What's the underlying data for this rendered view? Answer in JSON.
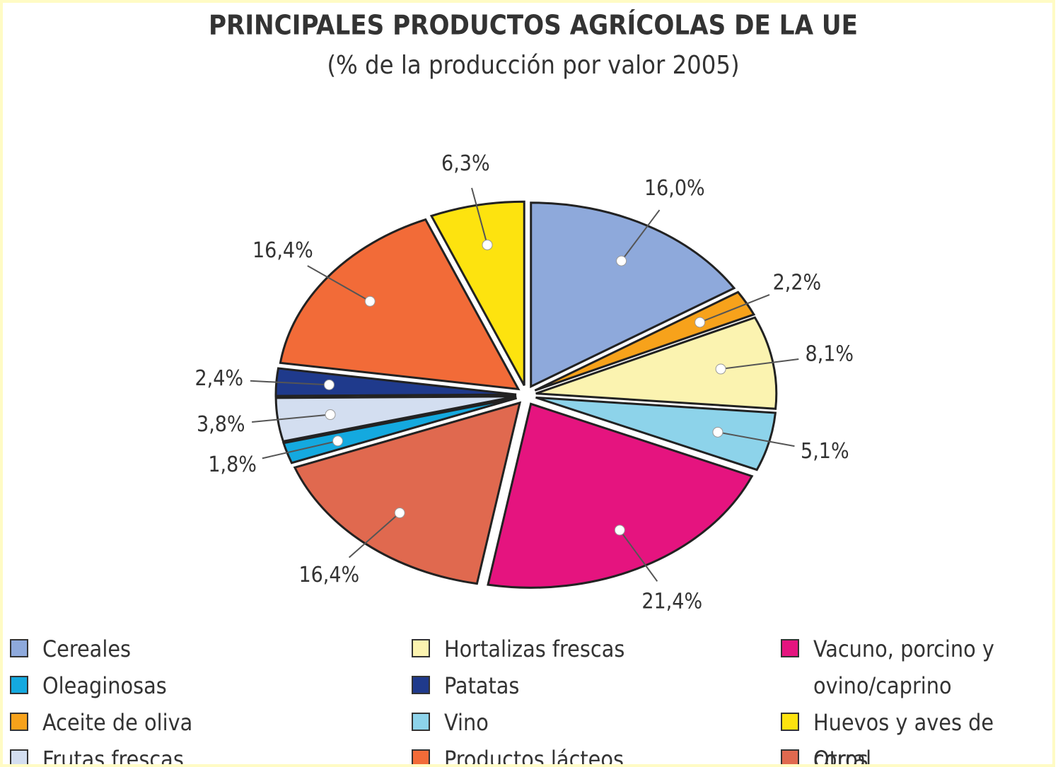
{
  "chart_data": {
    "type": "pie",
    "title": "PRINCIPALES PRODUCTOS AGRÍCOLAS DE LA UE",
    "subtitle": "(% de la producción por valor 2005)",
    "categories": [
      "Cereales",
      "Aceite de oliva",
      "Hortalizas frescas",
      "Vino",
      "Vacuno, porcino y ovino/caprino",
      "Otros",
      "Oleaginosas",
      "Frutas frescas",
      "Patatas",
      "Productos lácteos",
      "Huevos y aves de corral"
    ],
    "values": [
      16.0,
      2.2,
      8.1,
      5.1,
      21.4,
      16.4,
      1.8,
      3.8,
      2.4,
      16.4,
      6.3
    ],
    "value_labels": [
      "16,0%",
      "2,2%",
      "8,1%",
      "5,1%",
      "21,4%",
      "16,4%",
      "1,8%",
      "3,8%",
      "2,4%",
      "16,4%",
      "6,3%"
    ],
    "colors": [
      "#8ea9db",
      "#f7a21b",
      "#fbf3b0",
      "#8dd3ea",
      "#e5147f",
      "#e0694f",
      "#14a9df",
      "#d3def0",
      "#1f3a8c",
      "#f26b38",
      "#fde30f"
    ]
  }
}
